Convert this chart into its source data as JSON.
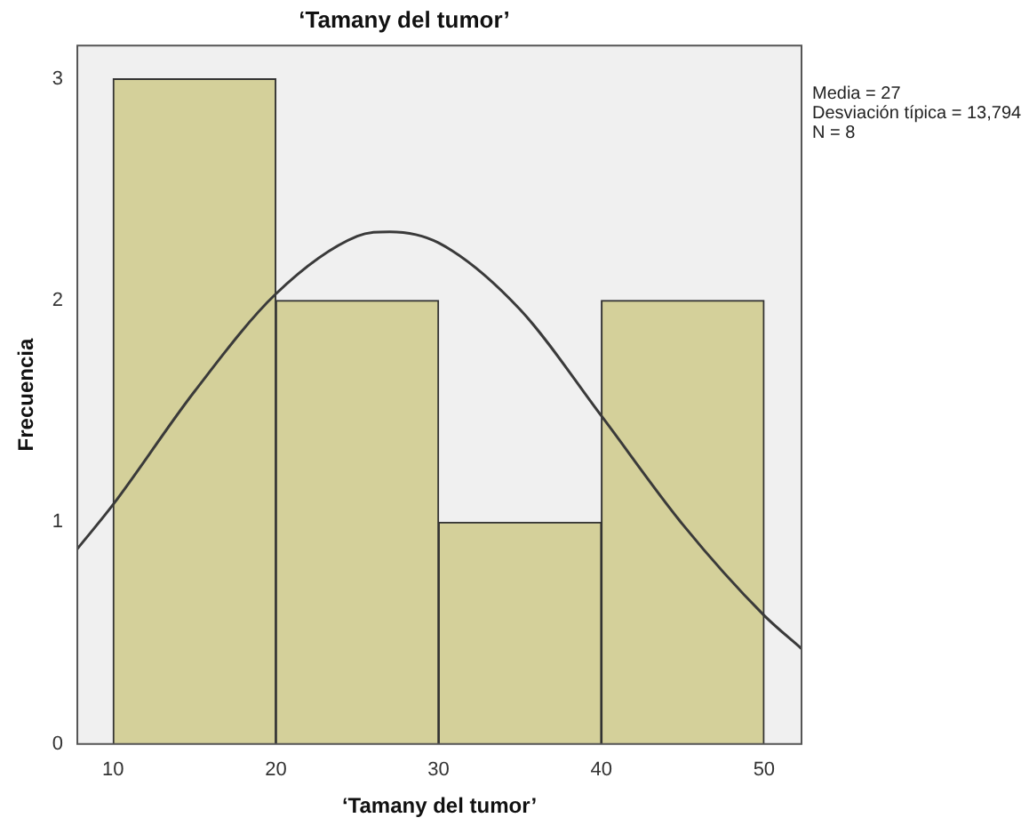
{
  "chart_data": {
    "type": "histogram",
    "title": "‘Tamany del tumor’",
    "xlabel": "‘Tamany del tumor’",
    "ylabel": "Frecuencia",
    "bins": [
      10,
      20,
      30,
      40,
      50
    ],
    "values": [
      3,
      2,
      1,
      2
    ],
    "color": "#d4d09a",
    "series": [
      {
        "type": "line",
        "color": "#3a3a3a",
        "x": [
          7.8,
          10,
          15,
          20,
          25,
          27,
          30,
          35,
          40,
          45,
          50,
          52.3
        ],
        "values": [
          0.88,
          1.08,
          1.59,
          2.03,
          2.29,
          2.31,
          2.26,
          1.96,
          1.48,
          0.99,
          0.58,
          0.43
        ]
      }
    ],
    "xlim": [
      7.8,
      52.3
    ],
    "xticks": [
      10,
      20,
      30,
      40,
      50
    ],
    "ylim": [
      0,
      3.15
    ],
    "yticks": [
      0,
      1,
      2,
      3
    ],
    "grid": false,
    "legend": false,
    "marker": "none",
    "line_style": "solid",
    "annotations": [
      "Media = 27",
      "Desviación típica = 13,794",
      "N = 8"
    ]
  }
}
